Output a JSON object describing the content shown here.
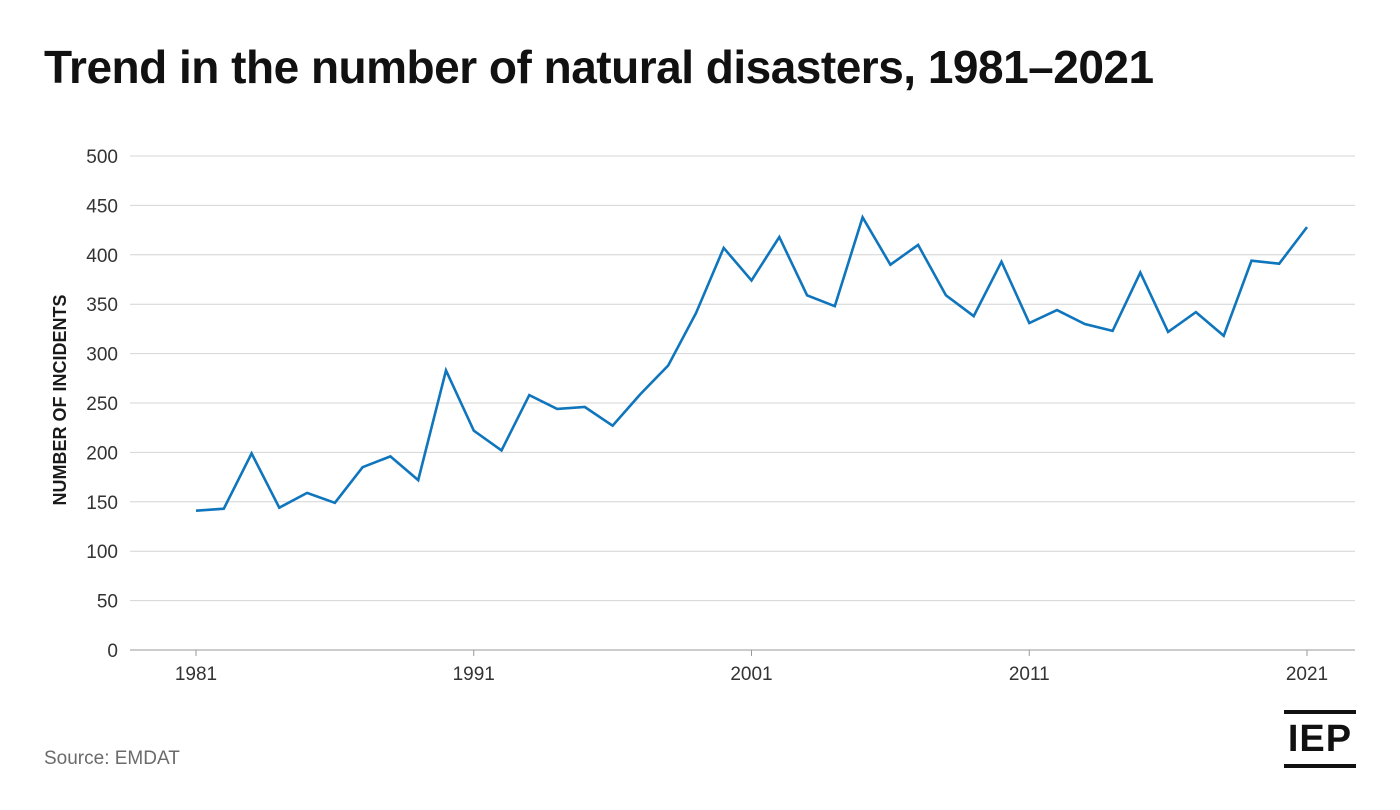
{
  "chart_data": {
    "type": "line",
    "title": "Trend in the number of natural disasters, 1981–2021",
    "xlabel": "",
    "ylabel": "NUMBER OF INCIDENTS",
    "x": [
      1981,
      1982,
      1983,
      1984,
      1985,
      1986,
      1987,
      1988,
      1989,
      1990,
      1991,
      1992,
      1993,
      1994,
      1995,
      1996,
      1997,
      1998,
      1999,
      2000,
      2001,
      2002,
      2003,
      2004,
      2005,
      2006,
      2007,
      2008,
      2009,
      2010,
      2011,
      2012,
      2013,
      2014,
      2015,
      2016,
      2017,
      2018,
      2019,
      2020,
      2021
    ],
    "series": [
      {
        "values": [
          141,
          143,
          199,
          144,
          159,
          149,
          185,
          196,
          172,
          283,
          222,
          202,
          258,
          244,
          246,
          227,
          259,
          288,
          341,
          407,
          374,
          418,
          359,
          348,
          438,
          390,
          410,
          359,
          338,
          393,
          331,
          344,
          330,
          323,
          382,
          322,
          342,
          318,
          394,
          391,
          428
        ],
        "color": "#0f75bc"
      }
    ],
    "x_ticks": [
      "1981",
      "1991",
      "2001",
      "2011",
      "2021"
    ],
    "y_ticks": [
      "0",
      "50",
      "100",
      "150",
      "200",
      "250",
      "300",
      "350",
      "400",
      "450",
      "500"
    ],
    "ylim": [
      0,
      500
    ],
    "grid": true,
    "legend": "none"
  },
  "footer": {
    "source": "Source: EMDAT",
    "logo_text": "IEP"
  }
}
